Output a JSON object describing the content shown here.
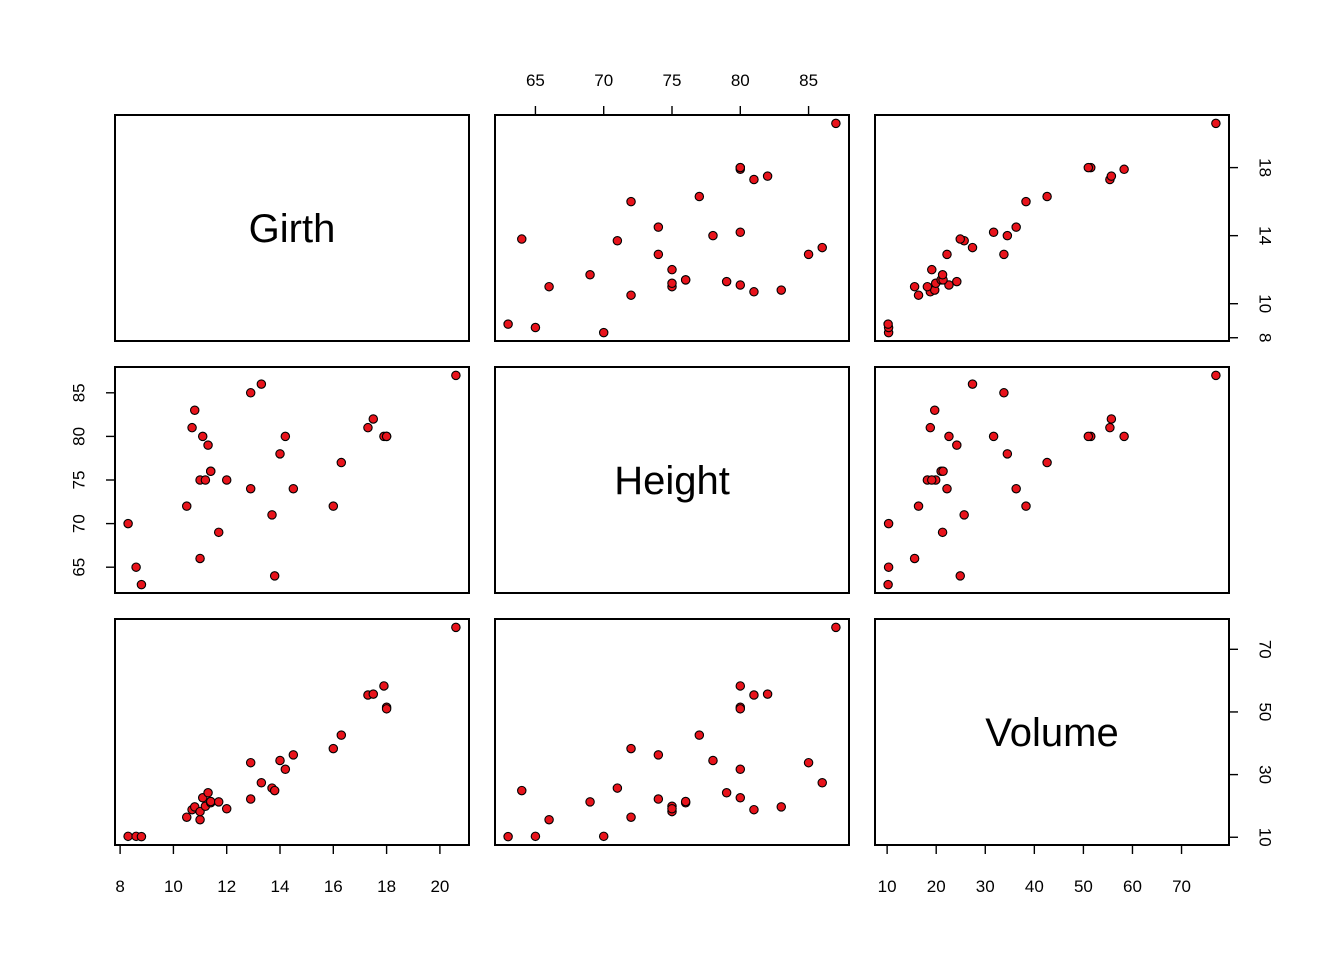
{
  "chart_data": {
    "type": "scatter",
    "variables": [
      "Girth",
      "Height",
      "Volume"
    ],
    "axes": {
      "Girth": {
        "range": [
          8.3,
          20.6
        ],
        "ticks": [
          8,
          10,
          12,
          14,
          16,
          18,
          20
        ],
        "ticks_upper": [
          8,
          10,
          14,
          18
        ]
      },
      "Height": {
        "range": [
          63,
          87
        ],
        "ticks": [
          65,
          70,
          75,
          80,
          85
        ]
      },
      "Volume": {
        "range": [
          10.2,
          77
        ],
        "ticks": [
          10,
          20,
          30,
          40,
          50,
          60,
          70
        ],
        "ticks_right": [
          10,
          30,
          50,
          70
        ]
      }
    },
    "records": [
      {
        "Girth": 8.3,
        "Height": 70,
        "Volume": 10.3
      },
      {
        "Girth": 8.6,
        "Height": 65,
        "Volume": 10.3
      },
      {
        "Girth": 8.8,
        "Height": 63,
        "Volume": 10.2
      },
      {
        "Girth": 10.5,
        "Height": 72,
        "Volume": 16.4
      },
      {
        "Girth": 10.7,
        "Height": 81,
        "Volume": 18.8
      },
      {
        "Girth": 10.8,
        "Height": 83,
        "Volume": 19.7
      },
      {
        "Girth": 11.0,
        "Height": 66,
        "Volume": 15.6
      },
      {
        "Girth": 11.0,
        "Height": 75,
        "Volume": 18.2
      },
      {
        "Girth": 11.1,
        "Height": 80,
        "Volume": 22.6
      },
      {
        "Girth": 11.2,
        "Height": 75,
        "Volume": 19.9
      },
      {
        "Girth": 11.3,
        "Height": 79,
        "Volume": 24.2
      },
      {
        "Girth": 11.4,
        "Height": 76,
        "Volume": 21.0
      },
      {
        "Girth": 11.4,
        "Height": 76,
        "Volume": 21.4
      },
      {
        "Girth": 11.7,
        "Height": 69,
        "Volume": 21.3
      },
      {
        "Girth": 12.0,
        "Height": 75,
        "Volume": 19.1
      },
      {
        "Girth": 12.9,
        "Height": 74,
        "Volume": 22.2
      },
      {
        "Girth": 12.9,
        "Height": 85,
        "Volume": 33.8
      },
      {
        "Girth": 13.3,
        "Height": 86,
        "Volume": 27.4
      },
      {
        "Girth": 13.7,
        "Height": 71,
        "Volume": 25.7
      },
      {
        "Girth": 13.8,
        "Height": 64,
        "Volume": 24.9
      },
      {
        "Girth": 14.0,
        "Height": 78,
        "Volume": 34.5
      },
      {
        "Girth": 14.2,
        "Height": 80,
        "Volume": 31.7
      },
      {
        "Girth": 14.5,
        "Height": 74,
        "Volume": 36.3
      },
      {
        "Girth": 16.0,
        "Height": 72,
        "Volume": 38.3
      },
      {
        "Girth": 16.3,
        "Height": 77,
        "Volume": 42.6
      },
      {
        "Girth": 17.3,
        "Height": 81,
        "Volume": 55.4
      },
      {
        "Girth": 17.5,
        "Height": 82,
        "Volume": 55.7
      },
      {
        "Girth": 17.9,
        "Height": 80,
        "Volume": 58.3
      },
      {
        "Girth": 18.0,
        "Height": 80,
        "Volume": 51.5
      },
      {
        "Girth": 18.0,
        "Height": 80,
        "Volume": 51.0
      },
      {
        "Girth": 20.6,
        "Height": 87,
        "Volume": 77.0
      }
    ]
  },
  "colors": {
    "point_fill": "#e8131b",
    "point_stroke": "#000000"
  }
}
